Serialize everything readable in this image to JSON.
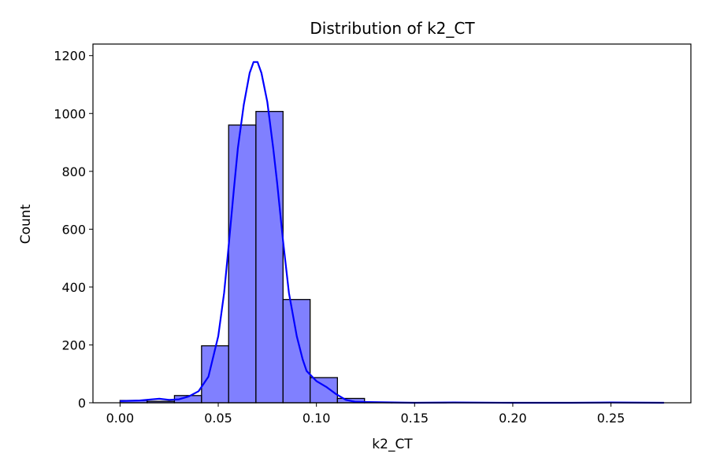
{
  "chart_data": {
    "type": "bar",
    "title": "Distribution of k2_CT",
    "xlabel": "k2_CT",
    "ylabel": "Count",
    "xlim": [
      -0.0138,
      0.2907
    ],
    "ylim": [
      0,
      1240
    ],
    "x_ticks": [
      0.0,
      0.05,
      0.1,
      0.15,
      0.2,
      0.25
    ],
    "x_tick_labels": [
      "0.00",
      "0.05",
      "0.10",
      "0.15",
      "0.20",
      "0.25"
    ],
    "y_ticks": [
      0,
      200,
      400,
      600,
      800,
      1000,
      1200
    ],
    "y_tick_labels": [
      "0",
      "200",
      "400",
      "600",
      "800",
      "1000",
      "1200"
    ],
    "bin_edges": [
      0.0,
      0.0138,
      0.0277,
      0.0415,
      0.0553,
      0.0692,
      0.083,
      0.0968,
      0.1107,
      0.1245,
      0.1383,
      0.1522,
      0.166,
      0.1798,
      0.1937,
      0.2075,
      0.2213,
      0.2352,
      0.249,
      0.2628,
      0.2767
    ],
    "counts": [
      8,
      5,
      25,
      197,
      960,
      1007,
      357,
      87,
      15,
      2,
      1,
      1,
      0,
      0,
      0,
      0,
      0,
      0,
      0,
      0
    ],
    "bar_color": "#8080ff",
    "bar_edge_color": "#000000",
    "kde_color": "#0000ff",
    "kde": {
      "x": [
        0.0,
        0.01,
        0.02,
        0.025,
        0.03,
        0.035,
        0.04,
        0.045,
        0.05,
        0.053,
        0.055,
        0.058,
        0.06,
        0.063,
        0.066,
        0.068,
        0.07,
        0.072,
        0.075,
        0.078,
        0.08,
        0.083,
        0.086,
        0.09,
        0.093,
        0.095,
        0.1,
        0.105,
        0.11,
        0.115,
        0.12,
        0.13,
        0.14,
        0.15,
        0.17,
        0.2,
        0.23,
        0.25,
        0.277
      ],
      "y": [
        6,
        8,
        14,
        10,
        12,
        22,
        40,
        90,
        230,
        380,
        520,
        740,
        880,
        1030,
        1140,
        1178,
        1178,
        1140,
        1040,
        880,
        760,
        560,
        380,
        230,
        150,
        110,
        75,
        55,
        30,
        10,
        3,
        2,
        1,
        0,
        1,
        0,
        0,
        1,
        0
      ]
    }
  }
}
